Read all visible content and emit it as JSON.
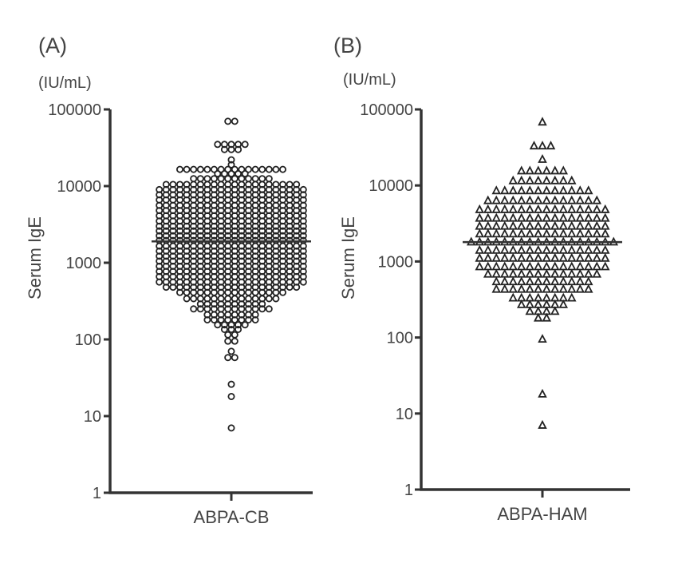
{
  "chart_data": [
    {
      "type": "scatter",
      "panel_label": "(A)",
      "unit": "(IU/mL)",
      "ylabel": "Serum IgE",
      "yscale": "log",
      "ylim": [
        1,
        100000
      ],
      "yticks": [
        "100000",
        "10000",
        "1000",
        "100",
        "10",
        "1"
      ],
      "category": "ABPA-CB",
      "marker": "circle",
      "median": 1900,
      "rows": [
        {
          "y": 70000,
          "n": 2
        },
        {
          "y": 35000,
          "n": 5
        },
        {
          "y": 30000,
          "n": 3
        },
        {
          "y": 22000,
          "n": 1
        },
        {
          "y": 19000,
          "n": 1
        },
        {
          "y": 16500,
          "n": 16
        },
        {
          "y": 14500,
          "n": 5
        },
        {
          "y": 12500,
          "n": 12
        },
        {
          "y": 10500,
          "n": 20
        },
        {
          "y": 9000,
          "n": 22
        },
        {
          "y": 7700,
          "n": 22
        },
        {
          "y": 6600,
          "n": 22
        },
        {
          "y": 5600,
          "n": 22
        },
        {
          "y": 4800,
          "n": 22
        },
        {
          "y": 4100,
          "n": 22
        },
        {
          "y": 3500,
          "n": 22
        },
        {
          "y": 3000,
          "n": 22
        },
        {
          "y": 2600,
          "n": 22
        },
        {
          "y": 2250,
          "n": 22
        },
        {
          "y": 1950,
          "n": 22
        },
        {
          "y": 1650,
          "n": 22
        },
        {
          "y": 1420,
          "n": 22
        },
        {
          "y": 1220,
          "n": 22
        },
        {
          "y": 1050,
          "n": 22
        },
        {
          "y": 900,
          "n": 22
        },
        {
          "y": 770,
          "n": 22
        },
        {
          "y": 660,
          "n": 22
        },
        {
          "y": 560,
          "n": 22
        },
        {
          "y": 480,
          "n": 20
        },
        {
          "y": 410,
          "n": 16
        },
        {
          "y": 340,
          "n": 14
        },
        {
          "y": 290,
          "n": 10
        },
        {
          "y": 250,
          "n": 12
        },
        {
          "y": 210,
          "n": 8
        },
        {
          "y": 180,
          "n": 8
        },
        {
          "y": 155,
          "n": 5
        },
        {
          "y": 135,
          "n": 3
        },
        {
          "y": 115,
          "n": 2
        },
        {
          "y": 95,
          "n": 2
        },
        {
          "y": 70,
          "n": 1
        },
        {
          "y": 58,
          "n": 2
        },
        {
          "y": 26,
          "n": 1
        },
        {
          "y": 18,
          "n": 1
        },
        {
          "y": 7,
          "n": 1
        }
      ]
    },
    {
      "type": "scatter",
      "panel_label": "(B)",
      "unit": "(IU/mL)",
      "ylabel": "Serum IgE",
      "yscale": "log",
      "ylim": [
        1,
        100000
      ],
      "yticks": [
        "100000",
        "10000",
        "1000",
        "100",
        "10",
        "1"
      ],
      "category": "ABPA-HAM",
      "marker": "triangle",
      "median": 1800,
      "rows": [
        {
          "y": 68000,
          "n": 1
        },
        {
          "y": 33000,
          "n": 3
        },
        {
          "y": 22000,
          "n": 1
        },
        {
          "y": 15500,
          "n": 6
        },
        {
          "y": 11500,
          "n": 8
        },
        {
          "y": 8500,
          "n": 12
        },
        {
          "y": 6300,
          "n": 14
        },
        {
          "y": 4800,
          "n": 16
        },
        {
          "y": 3700,
          "n": 16
        },
        {
          "y": 2900,
          "n": 16
        },
        {
          "y": 2300,
          "n": 16
        },
        {
          "y": 1800,
          "n": 18
        },
        {
          "y": 1400,
          "n": 16
        },
        {
          "y": 1100,
          "n": 16
        },
        {
          "y": 850,
          "n": 16
        },
        {
          "y": 680,
          "n": 14
        },
        {
          "y": 540,
          "n": 12
        },
        {
          "y": 430,
          "n": 12
        },
        {
          "y": 330,
          "n": 8
        },
        {
          "y": 270,
          "n": 6
        },
        {
          "y": 220,
          "n": 4
        },
        {
          "y": 180,
          "n": 2
        },
        {
          "y": 95,
          "n": 1
        },
        {
          "y": 18,
          "n": 1
        },
        {
          "y": 7,
          "n": 1
        }
      ]
    }
  ]
}
